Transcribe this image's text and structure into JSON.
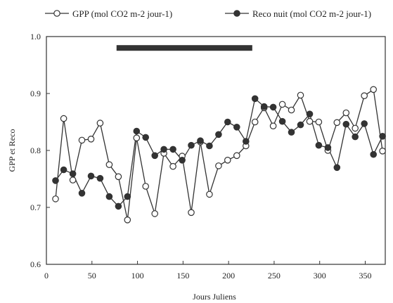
{
  "chart_data": {
    "type": "line",
    "xlabel": "Jours Juliens",
    "ylabel": "GPP et Reco",
    "xlim": [
      0,
      372
    ],
    "ylim": [
      0.6,
      1.0
    ],
    "xticks": [
      0,
      50,
      100,
      150,
      200,
      250,
      300,
      350
    ],
    "yticks": [
      0.6,
      0.7,
      0.8,
      0.9,
      1.0
    ],
    "ytick_labels": [
      "0.6",
      "0.7",
      "0.8",
      "0.9",
      "1.0"
    ],
    "legend_position": "top",
    "grid": false,
    "series": [
      {
        "name": "GPP (mol CO2 m-2 jour-1)",
        "marker": "open-circle",
        "color": "#333333",
        "x": [
          10,
          19,
          29,
          39,
          49,
          59,
          69,
          79,
          89,
          99,
          109,
          119,
          129,
          139,
          149,
          159,
          169,
          179,
          189,
          199,
          209,
          219,
          229,
          239,
          249,
          259,
          269,
          279,
          289,
          299,
          309,
          319,
          329,
          339,
          349,
          359,
          369
        ],
        "y": [
          0.715,
          0.856,
          0.748,
          0.818,
          0.82,
          0.848,
          0.775,
          0.754,
          0.678,
          0.822,
          0.737,
          0.689,
          0.795,
          0.772,
          0.79,
          0.691,
          0.815,
          0.723,
          0.773,
          0.783,
          0.791,
          0.808,
          0.85,
          0.875,
          0.843,
          0.881,
          0.871,
          0.897,
          0.851,
          0.85,
          0.8,
          0.849,
          0.866,
          0.839,
          0.896,
          0.907,
          0.799
        ]
      },
      {
        "name": "Reco nuit (mol CO2 m-2 jour-1)",
        "marker": "filled-circle",
        "color": "#333333",
        "x": [
          10,
          19,
          29,
          39,
          49,
          59,
          69,
          79,
          89,
          99,
          109,
          119,
          129,
          139,
          149,
          159,
          169,
          179,
          189,
          199,
          209,
          219,
          229,
          239,
          249,
          259,
          269,
          279,
          289,
          299,
          309,
          319,
          329,
          339,
          349,
          359,
          369
        ],
        "y": [
          0.747,
          0.766,
          0.759,
          0.725,
          0.755,
          0.751,
          0.719,
          0.702,
          0.719,
          0.834,
          0.823,
          0.791,
          0.802,
          0.802,
          0.783,
          0.809,
          0.817,
          0.808,
          0.828,
          0.85,
          0.841,
          0.816,
          0.891,
          0.877,
          0.876,
          0.851,
          0.832,
          0.845,
          0.864,
          0.809,
          0.805,
          0.77,
          0.846,
          0.824,
          0.847,
          0.793,
          0.825
        ]
      }
    ],
    "annotations": [
      {
        "type": "bar",
        "x_start": 77,
        "x_end": 226,
        "y": 0.98,
        "color": "#333333"
      }
    ]
  }
}
